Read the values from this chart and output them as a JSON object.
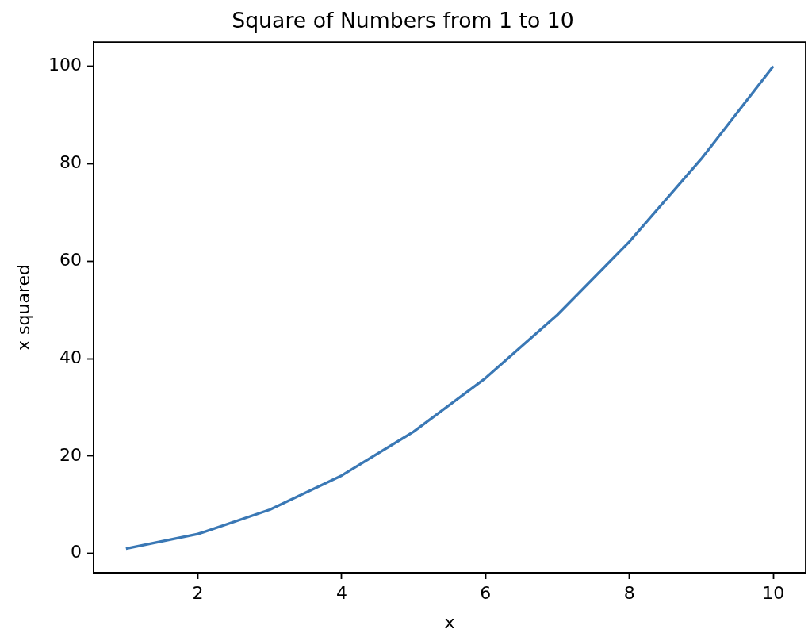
{
  "chart_data": {
    "type": "line",
    "title": "Square of Numbers from 1 to 10",
    "xlabel": "x",
    "ylabel": "x squared",
    "x": [
      1,
      2,
      3,
      4,
      5,
      6,
      7,
      8,
      9,
      10
    ],
    "series": [
      {
        "color": "#3a78b5",
        "values": [
          1,
          4,
          9,
          16,
          25,
          36,
          49,
          64,
          81,
          100
        ]
      }
    ],
    "xlim": [
      0.55,
      10.45
    ],
    "xticks": [
      2,
      4,
      6,
      8,
      10
    ],
    "ylim": [
      -3.95,
      104.95
    ],
    "yticks": [
      0,
      20,
      40,
      60,
      80,
      100
    ]
  }
}
